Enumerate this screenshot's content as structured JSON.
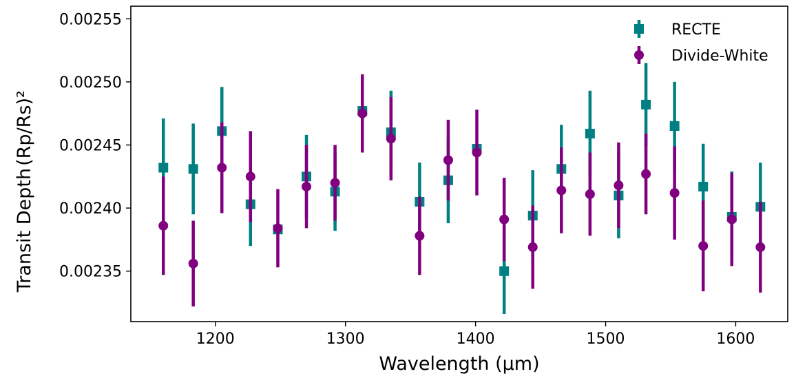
{
  "chart_data": {
    "type": "scatter",
    "xlabel": "Wavelength (μm)",
    "ylabel": "Transit Depth",
    "ylabel_math": "(Rp/Rs)²",
    "xlim": [
      1135,
      1640
    ],
    "ylim": [
      0.00231,
      0.00256
    ],
    "xticks": [
      1200,
      1300,
      1400,
      1500,
      1600
    ],
    "yticks": [
      0.00235,
      0.0024,
      0.00245,
      0.0025,
      0.00255
    ],
    "ytick_labels": [
      "0.00235",
      "0.00240",
      "0.00245",
      "0.00250",
      "0.00255"
    ],
    "grid": false,
    "legend_position": "top-right",
    "x": [
      1160,
      1183,
      1205,
      1227,
      1248,
      1270,
      1292,
      1313,
      1335,
      1357,
      1379,
      1401,
      1422,
      1444,
      1466,
      1488,
      1510,
      1531,
      1553,
      1575,
      1597,
      1619
    ],
    "series": [
      {
        "name": "RECTE",
        "marker": "square",
        "color": "#008080",
        "values": [
          0.002432,
          0.002431,
          0.002461,
          0.002403,
          0.002383,
          0.002425,
          0.002413,
          0.002477,
          0.00246,
          0.002405,
          0.002422,
          0.002447,
          0.00235,
          0.002394,
          0.002431,
          0.002459,
          0.00241,
          0.002482,
          0.002465,
          0.002417,
          0.002393,
          0.002401
        ],
        "errors": [
          3.9e-05,
          3.6e-05,
          3.5e-05,
          3.3e-05,
          3e-06,
          3.3e-05,
          3.1e-05,
          3e-06,
          3.3e-05,
          3.1e-05,
          3.4e-05,
          3e-06,
          3.4e-05,
          3.6e-05,
          3.5e-05,
          3.4e-05,
          3.4e-05,
          3.3e-05,
          3.5e-05,
          3.4e-05,
          3.6e-05,
          3.5e-05
        ]
      },
      {
        "name": "Divide-White",
        "marker": "circle",
        "color": "#800080",
        "values": [
          0.002386,
          0.002356,
          0.002432,
          0.002425,
          0.002384,
          0.002417,
          0.00242,
          0.002475,
          0.002455,
          0.002378,
          0.002438,
          0.002444,
          0.002391,
          0.002369,
          0.002414,
          0.002411,
          0.002418,
          0.002427,
          0.002412,
          0.00237,
          0.002391,
          0.002369
        ],
        "errors": [
          3.9e-05,
          3.4e-05,
          3.6e-05,
          3.6e-05,
          3.1e-05,
          3.3e-05,
          3e-05,
          3.1e-05,
          3.3e-05,
          3.1e-05,
          3.2e-05,
          3.4e-05,
          3.3e-05,
          3.3e-05,
          3.4e-05,
          3.3e-05,
          3.4e-05,
          3.2e-05,
          3.7e-05,
          3.6e-05,
          3.7e-05,
          3.6e-05
        ]
      }
    ]
  }
}
